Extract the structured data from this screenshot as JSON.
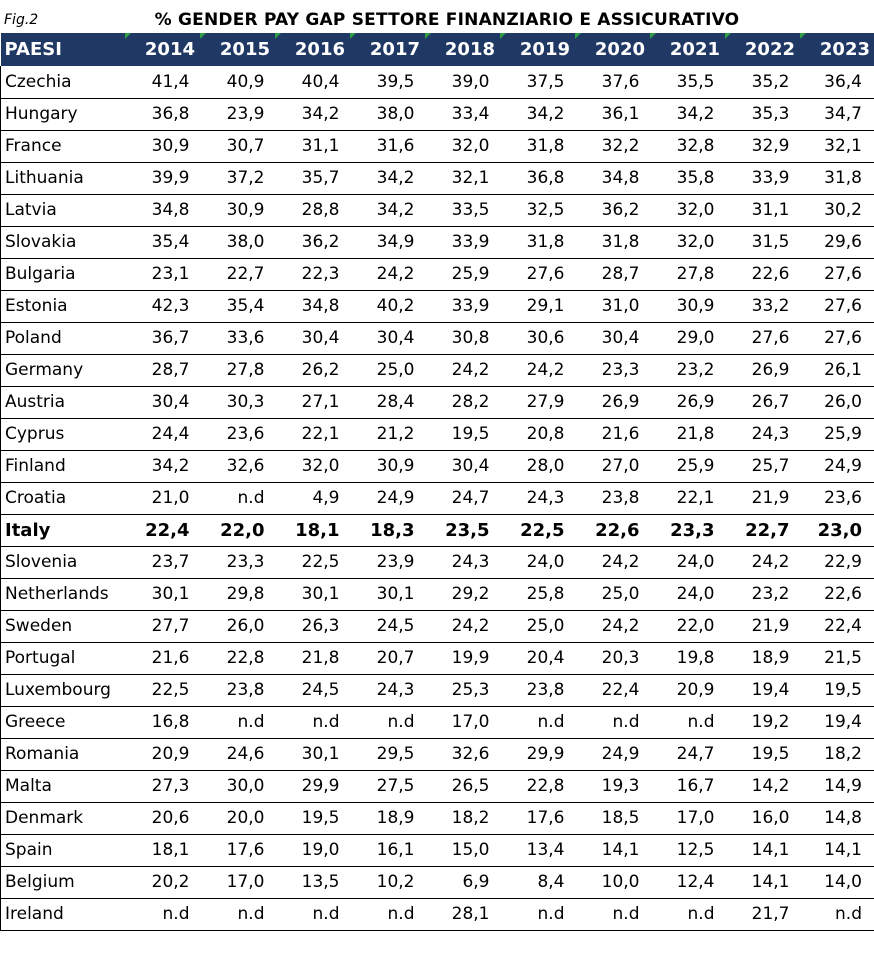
{
  "figure": {
    "label": "Fig.2",
    "title": "% GENDER PAY GAP SETTORE FINANZIARIO E ASSICURATIVO"
  },
  "colors": {
    "header_bg": "#1f3864",
    "header_text": "#ffffff",
    "corner_marker": "#2e9d44"
  },
  "chart_data": {
    "type": "table",
    "title": "% GENDER PAY GAP SETTORE FINANZIARIO E ASSICURATIVO",
    "row_header": "PAESI",
    "columns": [
      "2014",
      "2015",
      "2016",
      "2017",
      "2018",
      "2019",
      "2020",
      "2021",
      "2022",
      "2023"
    ],
    "highlight_row": "Italy",
    "rows": [
      {
        "country": "Czechia",
        "values": [
          "41,4",
          "40,9",
          "40,4",
          "39,5",
          "39,0",
          "37,5",
          "37,6",
          "35,5",
          "35,2",
          "36,4"
        ]
      },
      {
        "country": "Hungary",
        "values": [
          "36,8",
          "23,9",
          "34,2",
          "38,0",
          "33,4",
          "34,2",
          "36,1",
          "34,2",
          "35,3",
          "34,7"
        ]
      },
      {
        "country": "France",
        "values": [
          "30,9",
          "30,7",
          "31,1",
          "31,6",
          "32,0",
          "31,8",
          "32,2",
          "32,8",
          "32,9",
          "32,1"
        ]
      },
      {
        "country": "Lithuania",
        "values": [
          "39,9",
          "37,2",
          "35,7",
          "34,2",
          "32,1",
          "36,8",
          "34,8",
          "35,8",
          "33,9",
          "31,8"
        ]
      },
      {
        "country": "Latvia",
        "values": [
          "34,8",
          "30,9",
          "28,8",
          "34,2",
          "33,5",
          "32,5",
          "36,2",
          "32,0",
          "31,1",
          "30,2"
        ]
      },
      {
        "country": "Slovakia",
        "values": [
          "35,4",
          "38,0",
          "36,2",
          "34,9",
          "33,9",
          "31,8",
          "31,8",
          "32,0",
          "31,5",
          "29,6"
        ]
      },
      {
        "country": "Bulgaria",
        "values": [
          "23,1",
          "22,7",
          "22,3",
          "24,2",
          "25,9",
          "27,6",
          "28,7",
          "27,8",
          "22,6",
          "27,6"
        ]
      },
      {
        "country": "Estonia",
        "values": [
          "42,3",
          "35,4",
          "34,8",
          "40,2",
          "33,9",
          "29,1",
          "31,0",
          "30,9",
          "33,2",
          "27,6"
        ]
      },
      {
        "country": "Poland",
        "values": [
          "36,7",
          "33,6",
          "30,4",
          "30,4",
          "30,8",
          "30,6",
          "30,4",
          "29,0",
          "27,6",
          "27,6"
        ]
      },
      {
        "country": "Germany",
        "values": [
          "28,7",
          "27,8",
          "26,2",
          "25,0",
          "24,2",
          "24,2",
          "23,3",
          "23,2",
          "26,9",
          "26,1"
        ]
      },
      {
        "country": "Austria",
        "values": [
          "30,4",
          "30,3",
          "27,1",
          "28,4",
          "28,2",
          "27,9",
          "26,9",
          "26,9",
          "26,7",
          "26,0"
        ]
      },
      {
        "country": "Cyprus",
        "values": [
          "24,4",
          "23,6",
          "22,1",
          "21,2",
          "19,5",
          "20,8",
          "21,6",
          "21,8",
          "24,3",
          "25,9"
        ]
      },
      {
        "country": "Finland",
        "values": [
          "34,2",
          "32,6",
          "32,0",
          "30,9",
          "30,4",
          "28,0",
          "27,0",
          "25,9",
          "25,7",
          "24,9"
        ]
      },
      {
        "country": "Croatia",
        "values": [
          "21,0",
          "n.d",
          "4,9",
          "24,9",
          "24,7",
          "24,3",
          "23,8",
          "22,1",
          "21,9",
          "23,6"
        ]
      },
      {
        "country": "Italy",
        "values": [
          "22,4",
          "22,0",
          "18,1",
          "18,3",
          "23,5",
          "22,5",
          "22,6",
          "23,3",
          "22,7",
          "23,0"
        ]
      },
      {
        "country": "Slovenia",
        "values": [
          "23,7",
          "23,3",
          "22,5",
          "23,9",
          "24,3",
          "24,0",
          "24,2",
          "24,0",
          "24,2",
          "22,9"
        ]
      },
      {
        "country": "Netherlands",
        "values": [
          "30,1",
          "29,8",
          "30,1",
          "30,1",
          "29,2",
          "25,8",
          "25,0",
          "24,0",
          "23,2",
          "22,6"
        ]
      },
      {
        "country": "Sweden",
        "values": [
          "27,7",
          "26,0",
          "26,3",
          "24,5",
          "24,2",
          "25,0",
          "24,2",
          "22,0",
          "21,9",
          "22,4"
        ]
      },
      {
        "country": "Portugal",
        "values": [
          "21,6",
          "22,8",
          "21,8",
          "20,7",
          "19,9",
          "20,4",
          "20,3",
          "19,8",
          "18,9",
          "21,5"
        ]
      },
      {
        "country": "Luxembourg",
        "values": [
          "22,5",
          "23,8",
          "24,5",
          "24,3",
          "25,3",
          "23,8",
          "22,4",
          "20,9",
          "19,4",
          "19,5"
        ]
      },
      {
        "country": "Greece",
        "values": [
          "16,8",
          "n.d",
          "n.d",
          "n.d",
          "17,0",
          "n.d",
          "n.d",
          "n.d",
          "19,2",
          "19,4"
        ]
      },
      {
        "country": "Romania",
        "values": [
          "20,9",
          "24,6",
          "30,1",
          "29,5",
          "32,6",
          "29,9",
          "24,9",
          "24,7",
          "19,5",
          "18,2"
        ]
      },
      {
        "country": "Malta",
        "values": [
          "27,3",
          "30,0",
          "29,9",
          "27,5",
          "26,5",
          "22,8",
          "19,3",
          "16,7",
          "14,2",
          "14,9"
        ]
      },
      {
        "country": "Denmark",
        "values": [
          "20,6",
          "20,0",
          "19,5",
          "18,9",
          "18,2",
          "17,6",
          "18,5",
          "17,0",
          "16,0",
          "14,8"
        ]
      },
      {
        "country": "Spain",
        "values": [
          "18,1",
          "17,6",
          "19,0",
          "16,1",
          "15,0",
          "13,4",
          "14,1",
          "12,5",
          "14,1",
          "14,1"
        ]
      },
      {
        "country": "Belgium",
        "values": [
          "20,2",
          "17,0",
          "13,5",
          "10,2",
          "6,9",
          "8,4",
          "10,0",
          "12,4",
          "14,1",
          "14,0"
        ]
      },
      {
        "country": "Ireland",
        "values": [
          "n.d",
          "n.d",
          "n.d",
          "n.d",
          "28,1",
          "n.d",
          "n.d",
          "n.d",
          "21,7",
          "n.d"
        ]
      }
    ]
  }
}
